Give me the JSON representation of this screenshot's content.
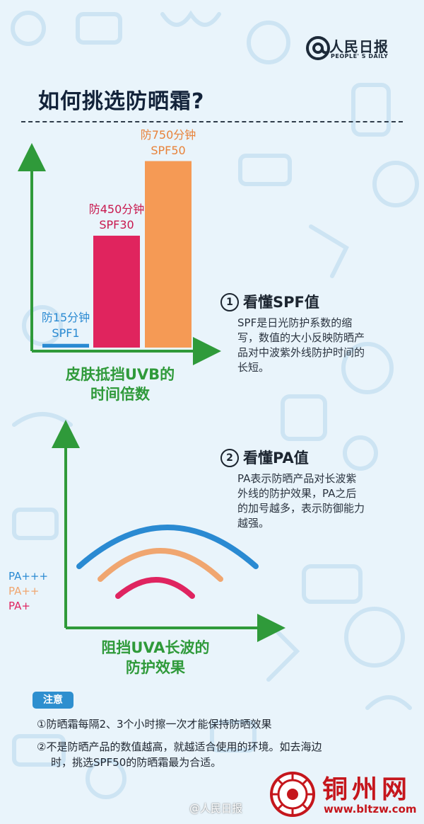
{
  "header": {
    "logo_cn": "人民日报",
    "logo_en": "PEOPLE' S DAILY",
    "title": "如何挑选防晒霜?"
  },
  "chart_data": [
    {
      "type": "bar",
      "categories": [
        "SPF1",
        "SPF30",
        "SPF50"
      ],
      "values": [
        15,
        450,
        750
      ],
      "data_labels": [
        "防15分钟",
        "防450分钟",
        "防750分钟"
      ],
      "xlabel_lines": [
        "皮肤抵挡UVB的",
        "时间倍数"
      ],
      "colors": [
        "#2a8ad2",
        "#e0245e",
        "#f59a55"
      ],
      "ylim": [
        0,
        800
      ]
    },
    {
      "type": "line",
      "series": [
        {
          "name": "PA+++",
          "color": "#2a8ad2"
        },
        {
          "name": "PA++",
          "color": "#f0a670"
        },
        {
          "name": "PA+",
          "color": "#df2460"
        }
      ],
      "xlabel_lines": [
        "阻挡UVA长波的",
        "防护效果"
      ]
    }
  ],
  "spf_info": {
    "num": "1",
    "heading": "看懂SPF值",
    "lines": [
      "SPF是日光防护系数的缩",
      "写，数值的大小反映防晒产",
      "品对中波紫外线防护时间的",
      "长短。"
    ]
  },
  "pa_info": {
    "num": "2",
    "heading": "看懂PA值",
    "lines": [
      "PA表示防晒产品对长波紫",
      "外线的防护效果，PA之后",
      "的加号越多，表示防御能力",
      "越强。"
    ]
  },
  "note": {
    "badge": "注意",
    "item1": "①防晒霜每隔2、3个小时擦一次才能保持防晒效果",
    "item2_line1": "②不是防晒产品的数值越高，就越适合使用的环境。如去海边",
    "item2_line2": "时，挑选SPF50的防晒霜最为合适。"
  },
  "footer": {
    "weibo": "@人民日报",
    "watermark_name": "铜州网",
    "watermark_url": "www.bltzw.com"
  },
  "colors": {
    "axis_green": "#2f9a3a",
    "accent_blue": "#2e8fcf",
    "watermark_red": "#c5161c"
  }
}
